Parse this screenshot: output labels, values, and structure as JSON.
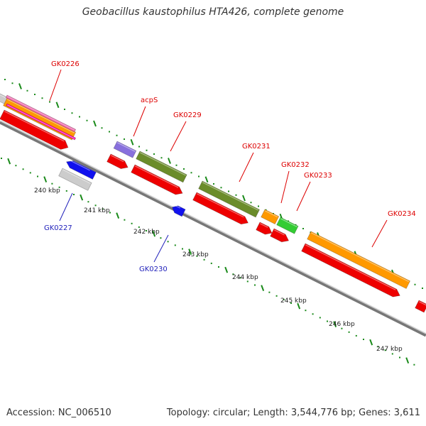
{
  "title": "Geobacillus kaustophilus HTA426, complete genome",
  "accession": "Accession: NC_006510",
  "topology": "Topology: circular; Length: 3,544,776 bp; Genes: 3,611",
  "colors": {
    "backbone": "#888888",
    "tick": "#1a8a1a",
    "cds": "#ee0000",
    "label_plus": "#dd0000",
    "label_minus": "#2222bb"
  },
  "scale_labels": [
    "240 kbp",
    "241 kbp",
    "242 kbp",
    "243 kbp",
    "244 kbp",
    "245 kbp",
    "246 kbp",
    "247 kbp"
  ],
  "gene_labels": [
    {
      "text": "GK0226",
      "strand": "plus"
    },
    {
      "text": "acpS",
      "strand": "plus"
    },
    {
      "text": "GK0229",
      "strand": "plus"
    },
    {
      "text": "GK0231",
      "strand": "plus"
    },
    {
      "text": "GK0232",
      "strand": "plus"
    },
    {
      "text": "GK0233",
      "strand": "plus"
    },
    {
      "text": "GK0234",
      "strand": "plus"
    },
    {
      "text": "GK0227",
      "strand": "minus"
    },
    {
      "text": "GK0230",
      "strand": "minus"
    }
  ]
}
